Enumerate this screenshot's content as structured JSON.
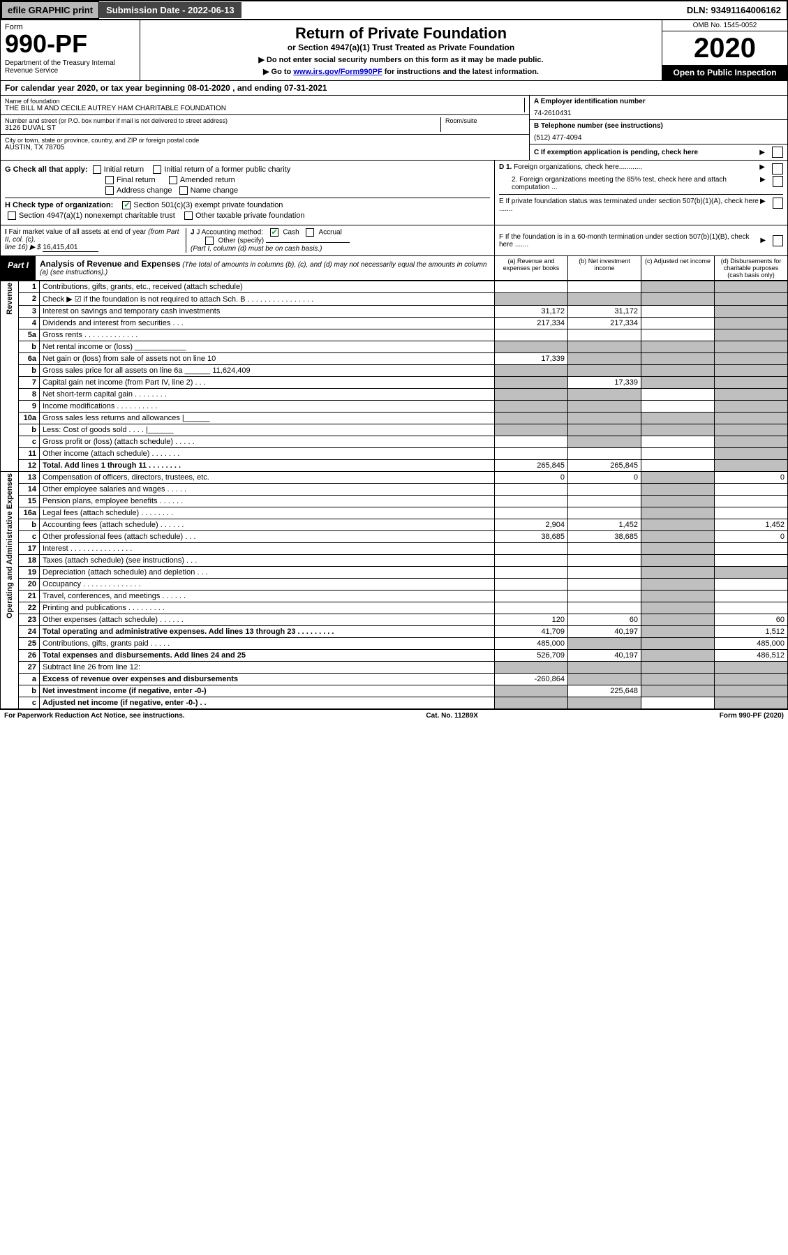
{
  "topbar": {
    "efile": "efile GRAPHIC print",
    "submission_label": "Submission Date - 2022-06-13",
    "dln": "DLN: 93491164006162"
  },
  "header": {
    "form_label": "Form",
    "form_no": "990-PF",
    "dept": "Department of the Treasury\nInternal Revenue Service",
    "title": "Return of Private Foundation",
    "subtitle": "or Section 4947(a)(1) Trust Treated as Private Foundation",
    "note1": "▶ Do not enter social security numbers on this form as it may be made public.",
    "note2_pre": "▶ Go to ",
    "note2_link": "www.irs.gov/Form990PF",
    "note2_post": " for instructions and the latest information.",
    "omb": "OMB No. 1545-0052",
    "year": "2020",
    "open": "Open to Public Inspection"
  },
  "cal": "For calendar year 2020, or tax year beginning 08-01-2020               , and ending 07-31-2021",
  "info": {
    "name_label": "Name of foundation",
    "name": "THE BILL M AND CECILE AUTREY HAM CHARITABLE FOUNDATION",
    "addr_label": "Number and street (or P.O. box number if mail is not delivered to street address)",
    "addr": "3126 DUVAL ST",
    "room_label": "Room/suite",
    "city_label": "City or town, state or province, country, and ZIP or foreign postal code",
    "city": "AUSTIN, TX  78705",
    "a_label": "A Employer identification number",
    "a_val": "74-2610431",
    "b_label": "B Telephone number (see instructions)",
    "b_val": "(512) 477-4094",
    "c_label": "C If exemption application is pending, check here"
  },
  "g": {
    "label": "G Check all that apply:",
    "opts": [
      "Initial return",
      "Initial return of a former public charity",
      "Final return",
      "Amended return",
      "Address change",
      "Name change"
    ]
  },
  "h": {
    "label": "H Check type of organization:",
    "opt1": "Section 501(c)(3) exempt private foundation",
    "opt2": "Section 4947(a)(1) nonexempt charitable trust",
    "opt3": "Other taxable private foundation"
  },
  "d": {
    "d1": "D 1. Foreign organizations, check here............",
    "d2": "2. Foreign organizations meeting the 85% test, check here and attach computation ...",
    "e": "E  If private foundation status was terminated under section 507(b)(1)(A), check here .......",
    "f": "F  If the foundation is in a 60-month termination under section 507(b)(1)(B), check here ......."
  },
  "i": {
    "label": "I Fair market value of all assets at end of year (from Part II, col. (c),",
    "line": "line 16) ▶ $",
    "val": "16,415,401"
  },
  "j": {
    "label": "J Accounting method:",
    "cash": "Cash",
    "accrual": "Accrual",
    "other": "Other (specify)",
    "note": "(Part I, column (d) must be on cash basis.)"
  },
  "part1": {
    "tag": "Part I",
    "title": "Analysis of Revenue and Expenses",
    "note": "(The total of amounts in columns (b), (c), and (d) may not necessarily equal the amounts in column (a) (see instructions).)",
    "cols": {
      "a": "(a)   Revenue and expenses per books",
      "b": "(b)   Net investment income",
      "c": "(c)   Adjusted net income",
      "d": "(d)  Disbursements for charitable purposes (cash basis only)"
    }
  },
  "side_labels": {
    "revenue": "Revenue",
    "expenses": "Operating and Administrative Expenses"
  },
  "rows": [
    {
      "n": "1",
      "d": "Contributions, gifts, grants, etc., received (attach schedule)",
      "a": "",
      "b": "",
      "c": "g",
      "dcol": "g"
    },
    {
      "n": "2",
      "d": "Check ▶ ☑ if the foundation is not required to attach Sch. B   .  .  .  .  .  .  .  .  .  .  .  .  .  .  .  .",
      "a": "g",
      "b": "g",
      "c": "g",
      "dcol": "g"
    },
    {
      "n": "3",
      "d": "Interest on savings and temporary cash investments",
      "a": "31,172",
      "b": "31,172",
      "c": "",
      "dcol": "g"
    },
    {
      "n": "4",
      "d": "Dividends and interest from securities   .   .   .",
      "a": "217,334",
      "b": "217,334",
      "c": "",
      "dcol": "g"
    },
    {
      "n": "5a",
      "d": "Gross rents   .  .  .  .  .  .  .  .  .  .  .  .  .",
      "a": "",
      "b": "",
      "c": "",
      "dcol": "g"
    },
    {
      "n": "b",
      "d": "Net rental income or (loss) ____________",
      "a": "g",
      "b": "g",
      "c": "g",
      "dcol": "g"
    },
    {
      "n": "6a",
      "d": "Net gain or (loss) from sale of assets not on line 10",
      "a": "17,339",
      "b": "g",
      "c": "g",
      "dcol": "g"
    },
    {
      "n": "b",
      "d": "Gross sales price for all assets on line 6a ______ 11,624,409",
      "a": "g",
      "b": "g",
      "c": "g",
      "dcol": "g"
    },
    {
      "n": "7",
      "d": "Capital gain net income (from Part IV, line 2)   .   .   .",
      "a": "g",
      "b": "17,339",
      "c": "g",
      "dcol": "g"
    },
    {
      "n": "8",
      "d": "Net short-term capital gain  .  .  .  .  .  .  .  .",
      "a": "g",
      "b": "g",
      "c": "",
      "dcol": "g"
    },
    {
      "n": "9",
      "d": "Income modifications  .  .  .  .  .  .  .  .  .  .",
      "a": "g",
      "b": "g",
      "c": "",
      "dcol": "g"
    },
    {
      "n": "10a",
      "d": "Gross sales less returns and allowances |______",
      "a": "g",
      "b": "g",
      "c": "g",
      "dcol": "g"
    },
    {
      "n": "b",
      "d": "Less: Cost of goods sold   .   .   .   .   |______",
      "a": "g",
      "b": "g",
      "c": "g",
      "dcol": "g"
    },
    {
      "n": "c",
      "d": "Gross profit or (loss) (attach schedule)   .   .   .   .   .",
      "a": "",
      "b": "g",
      "c": "",
      "dcol": "g"
    },
    {
      "n": "11",
      "d": "Other income (attach schedule)   .   .   .   .   .   .   .",
      "a": "",
      "b": "",
      "c": "",
      "dcol": "g"
    },
    {
      "n": "12",
      "d": "Total. Add lines 1 through 11  .  .  .  .  .  .  .  .",
      "a": "265,845",
      "b": "265,845",
      "c": "",
      "dcol": "g",
      "bold": true
    },
    {
      "n": "13",
      "d": "Compensation of officers, directors, trustees, etc.",
      "a": "0",
      "b": "0",
      "c": "g",
      "dcol": "0"
    },
    {
      "n": "14",
      "d": "Other employee salaries and wages   .   .   .   .   .",
      "a": "",
      "b": "",
      "c": "g",
      "dcol": ""
    },
    {
      "n": "15",
      "d": "Pension plans, employee benefits  .  .  .  .  .  .",
      "a": "",
      "b": "",
      "c": "g",
      "dcol": ""
    },
    {
      "n": "16a",
      "d": "Legal fees (attach schedule)  .  .  .  .  .  .  .  .",
      "a": "",
      "b": "",
      "c": "g",
      "dcol": ""
    },
    {
      "n": "b",
      "d": "Accounting fees (attach schedule)  .  .  .  .  .  .",
      "a": "2,904",
      "b": "1,452",
      "c": "g",
      "dcol": "1,452"
    },
    {
      "n": "c",
      "d": "Other professional fees (attach schedule)   .   .   .",
      "a": "38,685",
      "b": "38,685",
      "c": "g",
      "dcol": "0"
    },
    {
      "n": "17",
      "d": "Interest  .  .  .  .  .  .  .  .  .  .  .  .  .  .  .",
      "a": "",
      "b": "",
      "c": "g",
      "dcol": ""
    },
    {
      "n": "18",
      "d": "Taxes (attach schedule) (see instructions)   .   .   .",
      "a": "",
      "b": "",
      "c": "g",
      "dcol": ""
    },
    {
      "n": "19",
      "d": "Depreciation (attach schedule) and depletion   .   .   .",
      "a": "",
      "b": "",
      "c": "g",
      "dcol": "g"
    },
    {
      "n": "20",
      "d": "Occupancy  .  .  .  .  .  .  .  .  .  .  .  .  .  .",
      "a": "",
      "b": "",
      "c": "g",
      "dcol": ""
    },
    {
      "n": "21",
      "d": "Travel, conferences, and meetings  .  .  .  .  .  .",
      "a": "",
      "b": "",
      "c": "g",
      "dcol": ""
    },
    {
      "n": "22",
      "d": "Printing and publications  .  .  .  .  .  .  .  .  .",
      "a": "",
      "b": "",
      "c": "g",
      "dcol": ""
    },
    {
      "n": "23",
      "d": "Other expenses (attach schedule)  .  .  .  .  .  .",
      "a": "120",
      "b": "60",
      "c": "g",
      "dcol": "60"
    },
    {
      "n": "24",
      "d": "Total operating and administrative expenses. Add lines 13 through 23  .  .  .  .  .  .  .  .  .",
      "a": "41,709",
      "b": "40,197",
      "c": "g",
      "dcol": "1,512",
      "bold": true
    },
    {
      "n": "25",
      "d": "Contributions, gifts, grants paid   .   .   .   .   .",
      "a": "485,000",
      "b": "g",
      "c": "g",
      "dcol": "485,000"
    },
    {
      "n": "26",
      "d": "Total expenses and disbursements. Add lines 24 and 25",
      "a": "526,709",
      "b": "40,197",
      "c": "g",
      "dcol": "486,512",
      "bold": true
    },
    {
      "n": "27",
      "d": "Subtract line 26 from line 12:",
      "a": "g",
      "b": "g",
      "c": "g",
      "dcol": "g"
    },
    {
      "n": "a",
      "d": "Excess of revenue over expenses and disbursements",
      "a": "-260,864",
      "b": "g",
      "c": "g",
      "dcol": "g",
      "bold": true
    },
    {
      "n": "b",
      "d": "Net investment income (if negative, enter -0-)",
      "a": "g",
      "b": "225,648",
      "c": "g",
      "dcol": "g",
      "bold": true
    },
    {
      "n": "c",
      "d": "Adjusted net income (if negative, enter -0-)   .   .",
      "a": "g",
      "b": "g",
      "c": "",
      "dcol": "g",
      "bold": true
    }
  ],
  "footer": {
    "left": "For Paperwork Reduction Act Notice, see instructions.",
    "mid": "Cat. No. 11289X",
    "right": "Form 990-PF (2020)"
  }
}
